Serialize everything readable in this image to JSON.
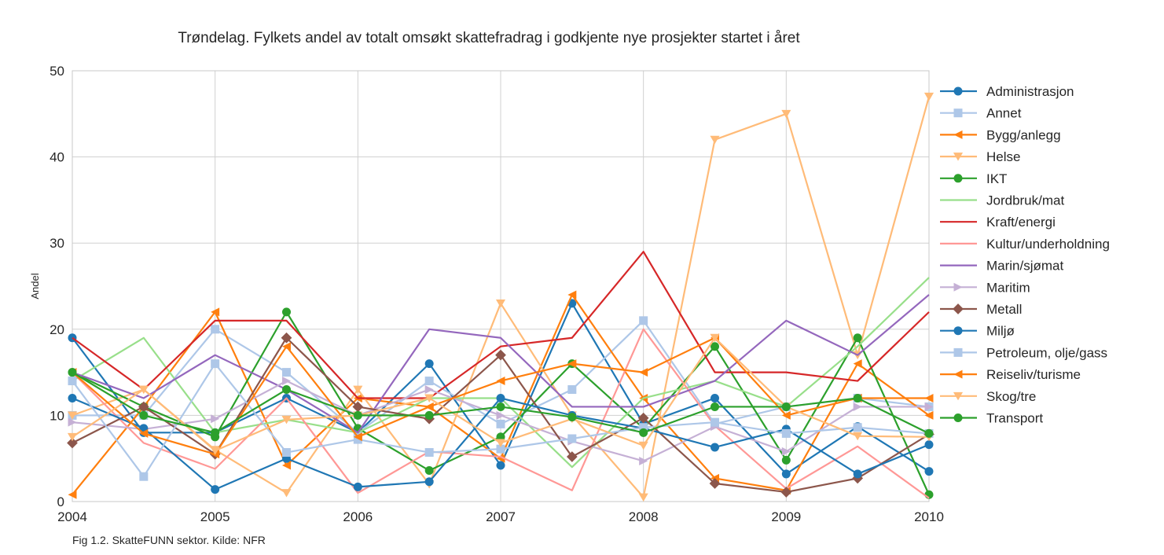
{
  "caption": "Fig 1.2. SkatteFUNN sektor. Kilde: NFR",
  "chart_data": {
    "type": "line",
    "title": "Trøndelag. Fylkets andel av totalt omsøkt skattefradrag i godkjente nye prosjekter startet i året",
    "xlabel": "",
    "ylabel": "Andel",
    "xlim": [
      2004,
      2010
    ],
    "ylim": [
      0,
      50
    ],
    "xticks": [
      "2004",
      "2005",
      "2006",
      "2007",
      "2008",
      "2009",
      "2010"
    ],
    "yticks": [
      "0",
      "10",
      "20",
      "30",
      "40",
      "50"
    ],
    "grid": true,
    "legend_position": "right",
    "x": [
      2004,
      2004.5,
      2005,
      2005.5,
      2006,
      2006.5,
      2007,
      2007.5,
      2008,
      2008.5,
      2009,
      2009.5,
      2010
    ],
    "series": [
      {
        "name": "Administrasjon",
        "color": "#1f77b4",
        "marker": "circle",
        "values": [
          19,
          8,
          8,
          12,
          8,
          16,
          4.2,
          23,
          9,
          12,
          3.2,
          8.7,
          3.5
        ]
      },
      {
        "name": "Annet",
        "color": "#aec7e8",
        "marker": "square",
        "values": [
          10,
          10,
          20,
          15,
          8,
          14,
          9,
          13,
          21,
          9,
          11,
          12,
          11
        ]
      },
      {
        "name": "Bygg/anlegg",
        "color": "#ff7f0e",
        "marker": "triangle-left",
        "values": [
          0.8,
          11,
          22,
          4.2,
          12,
          11,
          5,
          24,
          12,
          2.7,
          1.3,
          16,
          10
        ]
      },
      {
        "name": "Helse",
        "color": "#ffbb78",
        "marker": "triangle-down",
        "values": [
          10,
          13,
          6,
          1,
          13,
          2,
          23,
          10,
          0.5,
          42,
          45,
          17,
          47
        ]
      },
      {
        "name": "IKT",
        "color": "#2ca02c",
        "marker": "circle",
        "values": [
          15,
          11,
          7.5,
          22,
          8.5,
          3.6,
          7.5,
          16,
          8.5,
          18,
          4.8,
          19,
          0.8
        ]
      },
      {
        "name": "Jordbruk/mat",
        "color": "#98df8a",
        "marker": "none",
        "values": [
          14,
          19,
          8,
          9.5,
          8,
          12,
          12,
          4,
          12,
          14,
          11,
          18,
          26
        ]
      },
      {
        "name": "Kraft/energi",
        "color": "#d62728",
        "marker": "none",
        "values": [
          19,
          13,
          21,
          21,
          12,
          12,
          18,
          19,
          29,
          15,
          15,
          14,
          22
        ]
      },
      {
        "name": "Kultur/underholdning",
        "color": "#ff9896",
        "marker": "none",
        "values": [
          15,
          6.8,
          3.8,
          12,
          1,
          5.8,
          5.2,
          1.3,
          20,
          8.8,
          1.5,
          6.4,
          0.4
        ]
      },
      {
        "name": "Marin/sjømat",
        "color": "#9467bd",
        "marker": "none",
        "values": [
          15,
          12,
          17,
          13,
          8,
          20,
          19,
          11,
          11,
          14,
          21,
          17,
          24
        ]
      },
      {
        "name": "Maritim",
        "color": "#c5b0d5",
        "marker": "triangle-right",
        "values": [
          9.2,
          8.4,
          9.6,
          14,
          10,
          13,
          10,
          7,
          4.7,
          8.7,
          5.8,
          11,
          11
        ]
      },
      {
        "name": "Metall",
        "color": "#8c564b",
        "marker": "diamond",
        "values": [
          6.8,
          11,
          5.5,
          19,
          11,
          9.6,
          17,
          5.2,
          9.7,
          2.1,
          1.1,
          2.7,
          7.8
        ]
      },
      {
        "name": "Miljø",
        "color": "#1f77b4",
        "marker": "circle",
        "values": [
          12,
          8.5,
          1.4,
          5,
          1.7,
          2.3,
          12,
          10,
          8.5,
          6.3,
          8.4,
          3.2,
          6.6
        ]
      },
      {
        "name": "Petroleum, olje/gass",
        "color": "#aec7e8",
        "marker": "square",
        "values": [
          14,
          2.9,
          16,
          5.7,
          7.2,
          5.7,
          6.1,
          7.3,
          8.6,
          9.2,
          7.9,
          8.6,
          7.9
        ]
      },
      {
        "name": "Reiseliv/turisme",
        "color": "#ff7f0e",
        "marker": "triangle-left",
        "values": [
          15,
          7.9,
          5.5,
          18,
          7.5,
          11,
          14,
          16,
          15,
          19,
          10,
          12,
          12
        ]
      },
      {
        "name": "Skog/tre",
        "color": "#ffbb78",
        "marker": "triangle-down",
        "values": [
          7.5,
          13,
          5.9,
          9.5,
          10,
          12,
          6.8,
          9.6,
          6.5,
          19,
          11,
          7.6,
          7.5
        ]
      },
      {
        "name": "Transport",
        "color": "#2ca02c",
        "marker": "circle",
        "values": [
          15,
          10,
          8,
          13,
          10,
          10,
          11,
          9.8,
          8,
          11,
          11,
          12,
          7.9
        ]
      }
    ]
  }
}
